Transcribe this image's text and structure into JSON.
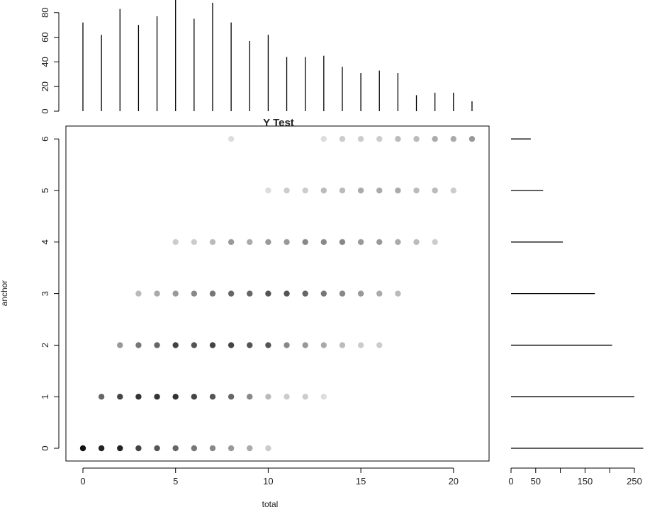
{
  "chart_data": [
    {
      "type": "scatter",
      "title": "Y Test",
      "xlabel": "total",
      "ylabel": "anchor",
      "xlim": [
        -1,
        22
      ],
      "ylim": [
        -0.2,
        6.2
      ],
      "x_ticks": [
        0,
        5,
        10,
        15,
        20
      ],
      "y_ticks": [
        0,
        1,
        2,
        3,
        4,
        5,
        6
      ],
      "marker": "filled circle, grayscale intensity proportional to count",
      "points": [
        {
          "x": 0,
          "y": 0,
          "shade": "#111111"
        },
        {
          "x": 1,
          "y": 0,
          "shade": "#222222"
        },
        {
          "x": 2,
          "y": 0,
          "shade": "#222222"
        },
        {
          "x": 3,
          "y": 0,
          "shade": "#444444"
        },
        {
          "x": 4,
          "y": 0,
          "shade": "#555555"
        },
        {
          "x": 5,
          "y": 0,
          "shade": "#666666"
        },
        {
          "x": 6,
          "y": 0,
          "shade": "#777777"
        },
        {
          "x": 7,
          "y": 0,
          "shade": "#888888"
        },
        {
          "x": 8,
          "y": 0,
          "shade": "#999999"
        },
        {
          "x": 9,
          "y": 0,
          "shade": "#aaaaaa"
        },
        {
          "x": 10,
          "y": 0,
          "shade": "#cccccc"
        },
        {
          "x": 1,
          "y": 1,
          "shade": "#666666"
        },
        {
          "x": 2,
          "y": 1,
          "shade": "#444444"
        },
        {
          "x": 3,
          "y": 1,
          "shade": "#333333"
        },
        {
          "x": 4,
          "y": 1,
          "shade": "#333333"
        },
        {
          "x": 5,
          "y": 1,
          "shade": "#333333"
        },
        {
          "x": 6,
          "y": 1,
          "shade": "#444444"
        },
        {
          "x": 7,
          "y": 1,
          "shade": "#555555"
        },
        {
          "x": 8,
          "y": 1,
          "shade": "#666666"
        },
        {
          "x": 9,
          "y": 1,
          "shade": "#888888"
        },
        {
          "x": 10,
          "y": 1,
          "shade": "#bbbbbb"
        },
        {
          "x": 11,
          "y": 1,
          "shade": "#cccccc"
        },
        {
          "x": 12,
          "y": 1,
          "shade": "#cccccc"
        },
        {
          "x": 13,
          "y": 1,
          "shade": "#dddddd"
        },
        {
          "x": 2,
          "y": 2,
          "shade": "#999999"
        },
        {
          "x": 3,
          "y": 2,
          "shade": "#777777"
        },
        {
          "x": 4,
          "y": 2,
          "shade": "#666666"
        },
        {
          "x": 5,
          "y": 2,
          "shade": "#444444"
        },
        {
          "x": 6,
          "y": 2,
          "shade": "#555555"
        },
        {
          "x": 7,
          "y": 2,
          "shade": "#444444"
        },
        {
          "x": 8,
          "y": 2,
          "shade": "#444444"
        },
        {
          "x": 9,
          "y": 2,
          "shade": "#555555"
        },
        {
          "x": 10,
          "y": 2,
          "shade": "#555555"
        },
        {
          "x": 11,
          "y": 2,
          "shade": "#888888"
        },
        {
          "x": 12,
          "y": 2,
          "shade": "#999999"
        },
        {
          "x": 13,
          "y": 2,
          "shade": "#aaaaaa"
        },
        {
          "x": 14,
          "y": 2,
          "shade": "#bbbbbb"
        },
        {
          "x": 15,
          "y": 2,
          "shade": "#cccccc"
        },
        {
          "x": 16,
          "y": 2,
          "shade": "#cccccc"
        },
        {
          "x": 3,
          "y": 3,
          "shade": "#bbbbbb"
        },
        {
          "x": 4,
          "y": 3,
          "shade": "#aaaaaa"
        },
        {
          "x": 5,
          "y": 3,
          "shade": "#999999"
        },
        {
          "x": 6,
          "y": 3,
          "shade": "#888888"
        },
        {
          "x": 7,
          "y": 3,
          "shade": "#777777"
        },
        {
          "x": 8,
          "y": 3,
          "shade": "#666666"
        },
        {
          "x": 9,
          "y": 3,
          "shade": "#666666"
        },
        {
          "x": 10,
          "y": 3,
          "shade": "#555555"
        },
        {
          "x": 11,
          "y": 3,
          "shade": "#555555"
        },
        {
          "x": 12,
          "y": 3,
          "shade": "#666666"
        },
        {
          "x": 13,
          "y": 3,
          "shade": "#777777"
        },
        {
          "x": 14,
          "y": 3,
          "shade": "#888888"
        },
        {
          "x": 15,
          "y": 3,
          "shade": "#999999"
        },
        {
          "x": 16,
          "y": 3,
          "shade": "#aaaaaa"
        },
        {
          "x": 17,
          "y": 3,
          "shade": "#bbbbbb"
        },
        {
          "x": 5,
          "y": 4,
          "shade": "#cccccc"
        },
        {
          "x": 6,
          "y": 4,
          "shade": "#cccccc"
        },
        {
          "x": 7,
          "y": 4,
          "shade": "#bbbbbb"
        },
        {
          "x": 8,
          "y": 4,
          "shade": "#999999"
        },
        {
          "x": 9,
          "y": 4,
          "shade": "#aaaaaa"
        },
        {
          "x": 10,
          "y": 4,
          "shade": "#999999"
        },
        {
          "x": 11,
          "y": 4,
          "shade": "#999999"
        },
        {
          "x": 12,
          "y": 4,
          "shade": "#888888"
        },
        {
          "x": 13,
          "y": 4,
          "shade": "#888888"
        },
        {
          "x": 14,
          "y": 4,
          "shade": "#888888"
        },
        {
          "x": 15,
          "y": 4,
          "shade": "#999999"
        },
        {
          "x": 16,
          "y": 4,
          "shade": "#999999"
        },
        {
          "x": 17,
          "y": 4,
          "shade": "#aaaaaa"
        },
        {
          "x": 18,
          "y": 4,
          "shade": "#bbbbbb"
        },
        {
          "x": 19,
          "y": 4,
          "shade": "#cccccc"
        },
        {
          "x": 10,
          "y": 5,
          "shade": "#dddddd"
        },
        {
          "x": 11,
          "y": 5,
          "shade": "#cccccc"
        },
        {
          "x": 12,
          "y": 5,
          "shade": "#cccccc"
        },
        {
          "x": 13,
          "y": 5,
          "shade": "#bbbbbb"
        },
        {
          "x": 14,
          "y": 5,
          "shade": "#bbbbbb"
        },
        {
          "x": 15,
          "y": 5,
          "shade": "#aaaaaa"
        },
        {
          "x": 16,
          "y": 5,
          "shade": "#aaaaaa"
        },
        {
          "x": 17,
          "y": 5,
          "shade": "#aaaaaa"
        },
        {
          "x": 18,
          "y": 5,
          "shade": "#bbbbbb"
        },
        {
          "x": 19,
          "y": 5,
          "shade": "#bbbbbb"
        },
        {
          "x": 20,
          "y": 5,
          "shade": "#cccccc"
        },
        {
          "x": 8,
          "y": 6,
          "shade": "#dddddd"
        },
        {
          "x": 13,
          "y": 6,
          "shade": "#dddddd"
        },
        {
          "x": 14,
          "y": 6,
          "shade": "#cccccc"
        },
        {
          "x": 15,
          "y": 6,
          "shade": "#cccccc"
        },
        {
          "x": 16,
          "y": 6,
          "shade": "#cccccc"
        },
        {
          "x": 17,
          "y": 6,
          "shade": "#bbbbbb"
        },
        {
          "x": 18,
          "y": 6,
          "shade": "#bbbbbb"
        },
        {
          "x": 19,
          "y": 6,
          "shade": "#aaaaaa"
        },
        {
          "x": 20,
          "y": 6,
          "shade": "#aaaaaa"
        },
        {
          "x": 21,
          "y": 6,
          "shade": "#999999"
        }
      ]
    },
    {
      "type": "bar",
      "orientation": "vertical",
      "style": "spikes (histogram type h)",
      "categories": [
        0,
        1,
        2,
        3,
        4,
        5,
        6,
        7,
        8,
        9,
        10,
        11,
        12,
        13,
        14,
        15,
        16,
        17,
        18,
        19,
        20,
        21
      ],
      "values": [
        72,
        62,
        83,
        70,
        77,
        92,
        75,
        88,
        72,
        57,
        62,
        44,
        44,
        45,
        36,
        31,
        33,
        31,
        13,
        15,
        15,
        8
      ],
      "y_ticks": [
        0,
        20,
        40,
        60,
        80
      ],
      "ylim": [
        0,
        90
      ]
    },
    {
      "type": "bar",
      "orientation": "horizontal",
      "style": "spikes (histogram type h)",
      "categories": [
        0,
        1,
        2,
        3,
        4,
        5,
        6
      ],
      "values": [
        268,
        250,
        205,
        170,
        105,
        65,
        40
      ],
      "x_ticks": [
        0,
        50,
        100,
        150,
        200,
        250
      ],
      "x_tick_labels": [
        "0",
        "50",
        "",
        "150",
        "",
        "250"
      ],
      "xlim": [
        0,
        270
      ]
    }
  ]
}
